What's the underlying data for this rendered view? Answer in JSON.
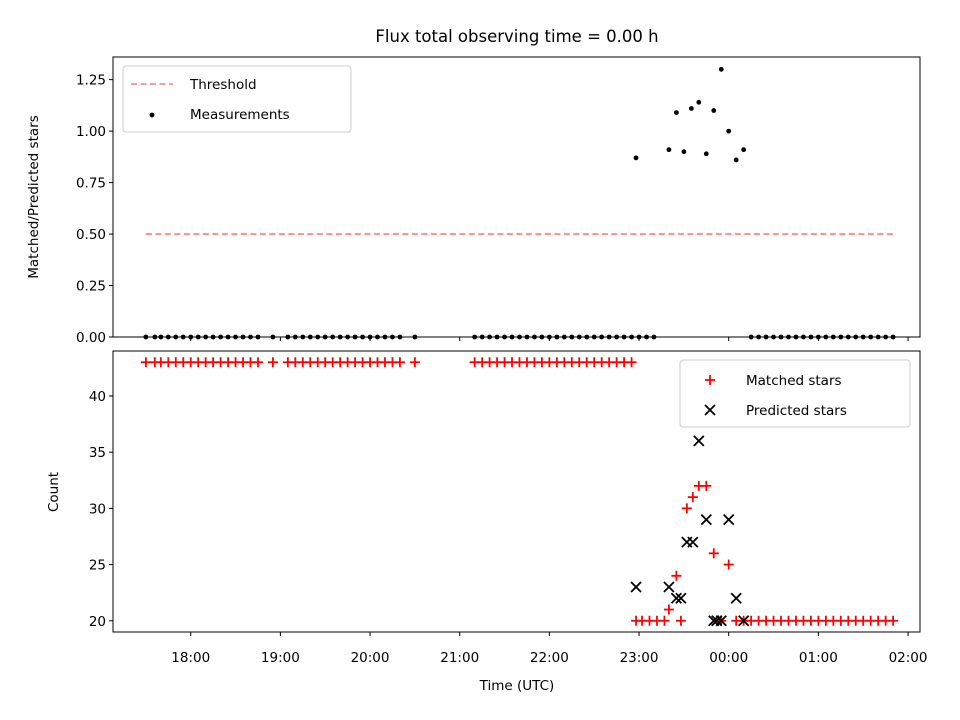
{
  "chart_data": [
    {
      "id": "top",
      "type": "scatter",
      "title": "Flux total observing time = 0.00 h",
      "ylabel": "Matched/Predicted stars",
      "xlabel": "",
      "xlim": [
        "17:08",
        "02:08"
      ],
      "ylim": [
        0,
        1.36
      ],
      "yticks": [
        0,
        0.25,
        0.5,
        0.75,
        1.0,
        1.25
      ],
      "ytick_labels": [
        "0.00",
        "0.25",
        "0.50",
        "0.75",
        "1.00",
        "1.25"
      ],
      "legend_position": "upper left",
      "threshold": {
        "name": "Threshold",
        "color": "#f08080",
        "y": 0.5,
        "x": [
          "17:30",
          "01:50"
        ]
      },
      "series": [
        {
          "name": "Measurements",
          "marker": "dot",
          "color": "#000000",
          "x": [
            "17:30",
            "17:36",
            "17:40",
            "17:45",
            "17:50",
            "17:55",
            "18:00",
            "18:05",
            "18:10",
            "18:15",
            "18:20",
            "18:25",
            "18:30",
            "18:35",
            "18:40",
            "18:45",
            "18:55",
            "19:05",
            "19:10",
            "19:15",
            "19:20",
            "19:25",
            "19:30",
            "19:35",
            "19:40",
            "19:45",
            "19:50",
            "19:55",
            "20:00",
            "20:05",
            "20:10",
            "20:15",
            "20:20",
            "20:30",
            "21:10",
            "21:15",
            "21:20",
            "21:25",
            "21:30",
            "21:35",
            "21:40",
            "21:45",
            "21:50",
            "21:55",
            "22:00",
            "22:05",
            "22:10",
            "22:15",
            "22:20",
            "22:25",
            "22:30",
            "22:35",
            "22:40",
            "22:45",
            "22:50",
            "22:55",
            "23:00",
            "23:05",
            "23:10",
            "22:58",
            "23:20",
            "23:25",
            "23:30",
            "23:35",
            "23:40",
            "23:45",
            "23:50",
            "23:55",
            "00:00",
            "00:05",
            "00:10",
            "00:15",
            "00:20",
            "00:25",
            "00:30",
            "00:35",
            "00:40",
            "00:45",
            "00:50",
            "00:55",
            "01:00",
            "01:05",
            "01:10",
            "01:15",
            "01:20",
            "01:25",
            "01:30",
            "01:35",
            "01:40",
            "01:45",
            "01:50"
          ],
          "y": [
            0,
            0,
            0,
            0,
            0,
            0,
            0,
            0,
            0,
            0,
            0,
            0,
            0,
            0,
            0,
            0,
            0,
            0,
            0,
            0,
            0,
            0,
            0,
            0,
            0,
            0,
            0,
            0,
            0,
            0,
            0,
            0,
            0,
            0,
            0,
            0,
            0,
            0,
            0,
            0,
            0,
            0,
            0,
            0,
            0,
            0,
            0,
            0,
            0,
            0,
            0,
            0,
            0,
            0,
            0,
            0,
            0,
            0,
            0,
            0.87,
            0.91,
            1.09,
            0.9,
            1.11,
            1.14,
            0.89,
            1.1,
            1.3,
            1.0,
            0.86,
            0.91,
            0,
            0,
            0,
            0,
            0,
            0,
            0,
            0,
            0,
            0,
            0,
            0,
            0,
            0,
            0,
            0,
            0,
            0,
            0,
            0
          ]
        }
      ]
    },
    {
      "id": "bottom",
      "type": "scatter",
      "title": "",
      "ylabel": "Count",
      "xlabel": "Time (UTC)",
      "xlim": [
        "17:08",
        "02:08"
      ],
      "ylim": [
        19,
        44
      ],
      "yticks": [
        20,
        25,
        30,
        35,
        40
      ],
      "ytick_labels": [
        "20",
        "25",
        "30",
        "35",
        "40"
      ],
      "xticks": [
        "18:00",
        "19:00",
        "20:00",
        "21:00",
        "22:00",
        "23:00",
        "00:00",
        "01:00",
        "02:00"
      ],
      "xtick_labels": [
        "18:00",
        "19:00",
        "20:00",
        "21:00",
        "22:00",
        "23:00",
        "00:00",
        "01:00",
        "02:00"
      ],
      "legend_position": "upper right",
      "series": [
        {
          "name": "Matched stars",
          "marker": "plus",
          "color": "#ff0000",
          "x": [
            "17:30",
            "17:36",
            "17:40",
            "17:45",
            "17:50",
            "17:55",
            "18:00",
            "18:05",
            "18:10",
            "18:15",
            "18:20",
            "18:25",
            "18:30",
            "18:35",
            "18:40",
            "18:45",
            "18:55",
            "19:05",
            "19:10",
            "19:15",
            "19:20",
            "19:25",
            "19:30",
            "19:35",
            "19:40",
            "19:45",
            "19:50",
            "19:55",
            "20:00",
            "20:05",
            "20:10",
            "20:15",
            "20:20",
            "20:30",
            "21:10",
            "21:15",
            "21:20",
            "21:25",
            "21:30",
            "21:35",
            "21:40",
            "21:45",
            "21:50",
            "21:55",
            "22:00",
            "22:05",
            "22:10",
            "22:15",
            "22:20",
            "22:25",
            "22:30",
            "22:35",
            "22:40",
            "22:45",
            "22:50",
            "22:55",
            "22:58",
            "23:02",
            "23:07",
            "23:12",
            "23:17",
            "23:20",
            "23:25",
            "23:28",
            "23:32",
            "23:36",
            "23:40",
            "23:45",
            "23:50",
            "23:55",
            "00:00",
            "00:05",
            "00:10",
            "00:15",
            "00:20",
            "00:25",
            "00:30",
            "00:35",
            "00:40",
            "00:45",
            "00:50",
            "00:55",
            "01:00",
            "01:05",
            "01:10",
            "01:15",
            "01:20",
            "01:25",
            "01:30",
            "01:35",
            "01:40",
            "01:45",
            "01:50"
          ],
          "y": [
            43,
            43,
            43,
            43,
            43,
            43,
            43,
            43,
            43,
            43,
            43,
            43,
            43,
            43,
            43,
            43,
            43,
            43,
            43,
            43,
            43,
            43,
            43,
            43,
            43,
            43,
            43,
            43,
            43,
            43,
            43,
            43,
            43,
            43,
            43,
            43,
            43,
            43,
            43,
            43,
            43,
            43,
            43,
            43,
            43,
            43,
            43,
            43,
            43,
            43,
            43,
            43,
            43,
            43,
            43,
            43,
            20,
            20,
            20,
            20,
            20,
            21,
            24,
            20,
            30,
            31,
            32,
            32,
            26,
            20,
            25,
            20,
            20,
            20,
            20,
            20,
            20,
            20,
            20,
            20,
            20,
            20,
            20,
            20,
            20,
            20,
            20,
            20,
            20,
            20,
            20,
            20,
            20
          ]
        },
        {
          "name": "Predicted stars",
          "marker": "x",
          "color": "#000000",
          "x": [
            "22:58",
            "23:20",
            "23:25",
            "23:28",
            "23:32",
            "23:36",
            "23:40",
            "23:45",
            "23:50",
            "23:52",
            "23:55",
            "00:00",
            "00:05",
            "00:10"
          ],
          "y": [
            23,
            23,
            22,
            22,
            27,
            27,
            36,
            29,
            20,
            20,
            20,
            29,
            22,
            20
          ]
        }
      ]
    }
  ]
}
